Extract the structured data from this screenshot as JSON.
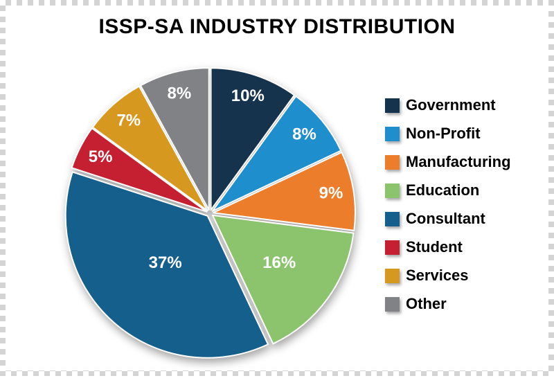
{
  "chart_data": {
    "type": "pie",
    "title": "ISSP-SA INDUSTRY DISTRIBUTION",
    "start_angle_deg": -90,
    "direction": "clockwise",
    "legend_position": "right",
    "background_color": "#ffffff",
    "slices": [
      {
        "label": "Government",
        "value": 10,
        "percent_label": "10%",
        "color": "#16334e"
      },
      {
        "label": "Non-Profit",
        "value": 8,
        "percent_label": "8%",
        "color": "#1f8ecd"
      },
      {
        "label": "Manufacturing",
        "value": 9,
        "percent_label": "9%",
        "color": "#ec7e2b"
      },
      {
        "label": "Education",
        "value": 16,
        "percent_label": "16%",
        "color": "#8cc46e"
      },
      {
        "label": "Consultant",
        "value": 37,
        "percent_label": "37%",
        "color": "#155f8d"
      },
      {
        "label": "Student",
        "value": 5,
        "percent_label": "5%",
        "color": "#c42031"
      },
      {
        "label": "Services",
        "value": 7,
        "percent_label": "7%",
        "color": "#d6981e"
      },
      {
        "label": "Other",
        "value": 8,
        "percent_label": "8%",
        "color": "#808285"
      }
    ]
  }
}
